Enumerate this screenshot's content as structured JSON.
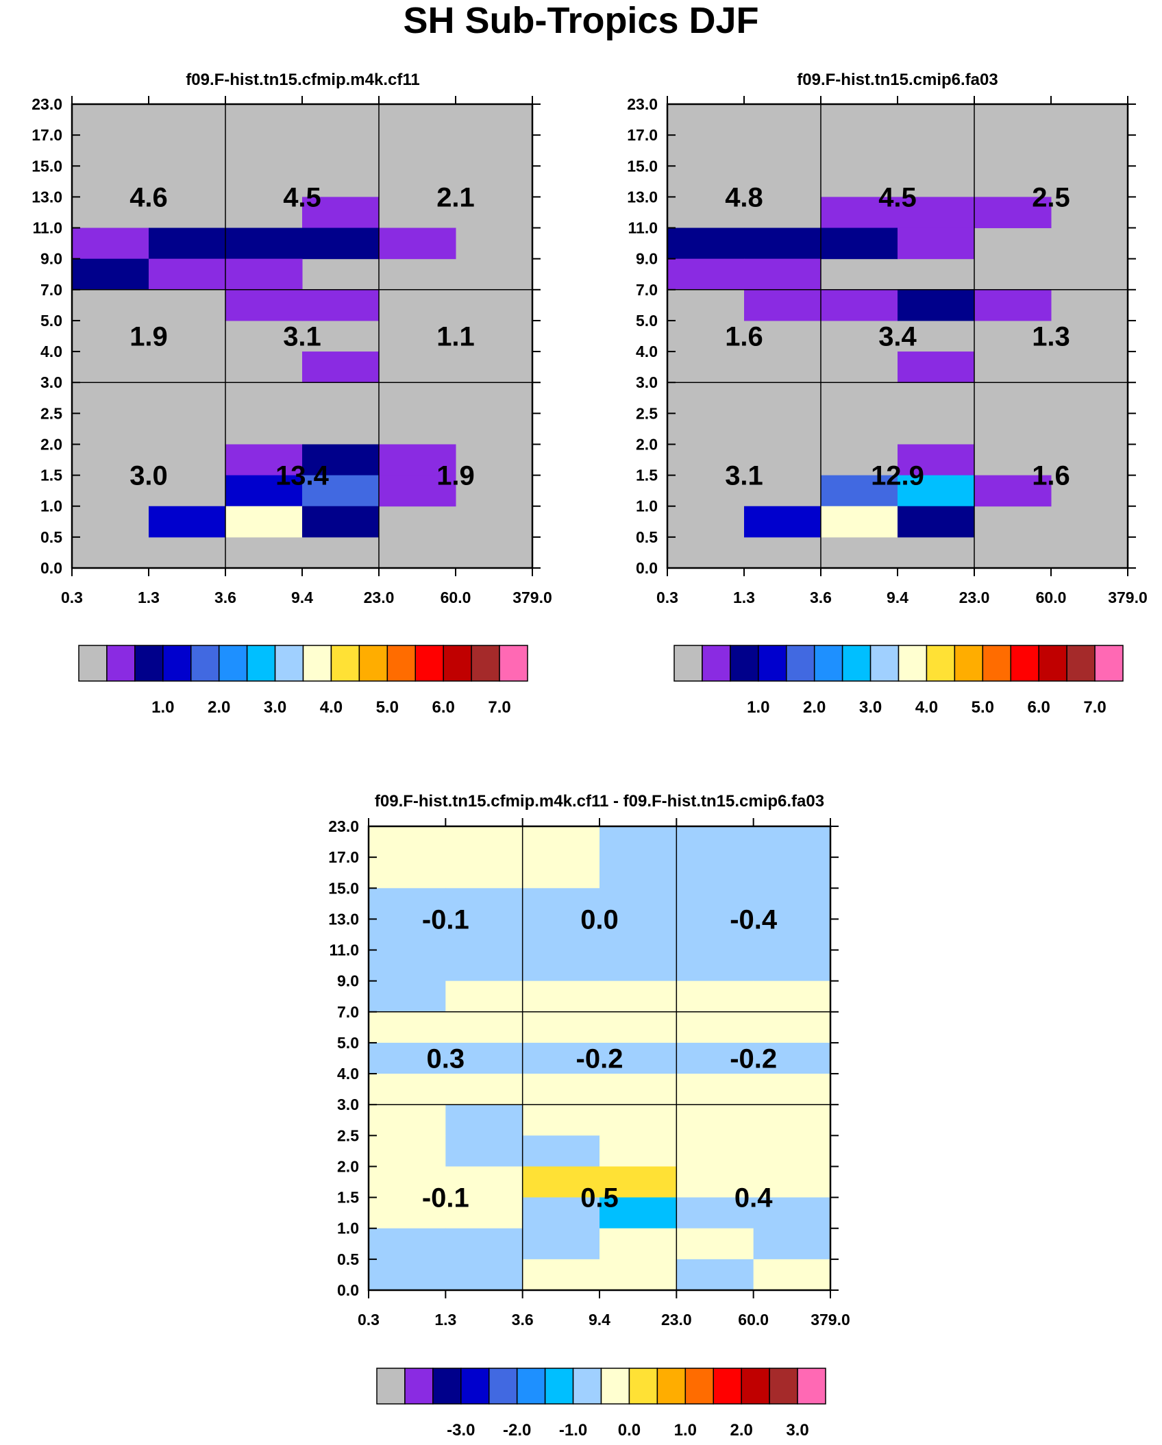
{
  "title": "SH Sub-Tropics DJF",
  "colors": {
    "palette": [
      "#bebebe",
      "#8a2be2",
      "#00008b",
      "#0000cd",
      "#4169e1",
      "#1e90ff",
      "#00bfff",
      "#a0d0ff",
      "#ffffd0",
      "#ffe135",
      "#ffad00",
      "#ff6c00",
      "#ff0000",
      "#c00000",
      "#a52a2a",
      "#ff69b4"
    ],
    "background": "#bebebe"
  },
  "chart_data": [
    {
      "type": "heatmap",
      "title": "f09.F-hist.tn15.cfmip.m4k.cf11",
      "x_tick_labels": [
        "0.3",
        "1.3",
        "3.6",
        "9.4",
        "23.0",
        "60.0",
        "379.0"
      ],
      "y_tick_labels": [
        "0.0",
        "0.5",
        "1.0",
        "1.5",
        "2.0",
        "2.5",
        "3.0",
        "4.0",
        "5.0",
        "7.0",
        "9.0",
        "11.0",
        "13.0",
        "15.0",
        "17.0",
        "23.0"
      ],
      "bin_colors_top_to_bottom": [
        [
          0,
          0,
          0,
          0,
          0,
          0
        ],
        [
          0,
          0,
          0,
          0,
          0,
          0
        ],
        [
          0,
          0,
          0,
          1,
          0,
          0
        ],
        [
          1,
          2,
          2,
          2,
          1,
          0
        ],
        [
          2,
          1,
          1,
          0,
          0,
          0
        ],
        [
          0,
          0,
          1,
          1,
          0,
          0
        ],
        [
          0,
          0,
          0,
          0,
          0,
          0
        ],
        [
          0,
          0,
          0,
          1,
          0,
          0
        ],
        [
          0,
          0,
          0,
          0,
          0,
          0
        ],
        [
          0,
          0,
          0,
          0,
          0,
          0
        ],
        [
          0,
          0,
          1,
          2,
          1,
          0
        ],
        [
          0,
          0,
          3,
          4,
          1,
          0
        ],
        [
          0,
          3,
          8,
          2,
          0,
          0
        ],
        [
          0,
          0,
          0,
          0,
          0,
          0
        ]
      ],
      "group_labels": [
        [
          "4.6",
          "4.5",
          "2.1"
        ],
        [
          "1.9",
          "3.1",
          "1.1"
        ],
        [
          "3.0",
          "13.4",
          "1.9"
        ]
      ],
      "colorbar_labels": [
        "1.0",
        "2.0",
        "3.0",
        "4.0",
        "5.0",
        "6.0",
        "7.0"
      ]
    },
    {
      "type": "heatmap",
      "title": "f09.F-hist.tn15.cmip6.fa03",
      "x_tick_labels": [
        "0.3",
        "1.3",
        "3.6",
        "9.4",
        "23.0",
        "60.0",
        "379.0"
      ],
      "y_tick_labels": [
        "0.0",
        "0.5",
        "1.0",
        "1.5",
        "2.0",
        "2.5",
        "3.0",
        "4.0",
        "5.0",
        "7.0",
        "9.0",
        "11.0",
        "13.0",
        "15.0",
        "17.0",
        "23.0"
      ],
      "bin_colors_top_to_bottom": [
        [
          0,
          0,
          0,
          0,
          0,
          0
        ],
        [
          0,
          0,
          0,
          0,
          0,
          0
        ],
        [
          0,
          0,
          1,
          1,
          1,
          0
        ],
        [
          2,
          2,
          2,
          1,
          0,
          0
        ],
        [
          1,
          1,
          0,
          0,
          0,
          0
        ],
        [
          0,
          1,
          1,
          2,
          1,
          0
        ],
        [
          0,
          0,
          0,
          0,
          0,
          0
        ],
        [
          0,
          0,
          0,
          1,
          0,
          0
        ],
        [
          0,
          0,
          0,
          0,
          0,
          0
        ],
        [
          0,
          0,
          0,
          0,
          0,
          0
        ],
        [
          0,
          0,
          0,
          1,
          0,
          0
        ],
        [
          0,
          0,
          4,
          6,
          1,
          0
        ],
        [
          0,
          3,
          8,
          2,
          0,
          0
        ],
        [
          0,
          0,
          0,
          0,
          0,
          0
        ]
      ],
      "group_labels": [
        [
          "4.8",
          "4.5",
          "2.5"
        ],
        [
          "1.6",
          "3.4",
          "1.3"
        ],
        [
          "3.1",
          "12.9",
          "1.6"
        ]
      ],
      "colorbar_labels": [
        "1.0",
        "2.0",
        "3.0",
        "4.0",
        "5.0",
        "6.0",
        "7.0"
      ]
    },
    {
      "type": "heatmap",
      "title": "f09.F-hist.tn15.cfmip.m4k.cf11 - f09.F-hist.tn15.cmip6.fa03",
      "x_tick_labels": [
        "0.3",
        "1.3",
        "3.6",
        "9.4",
        "23.0",
        "60.0",
        "379.0"
      ],
      "y_tick_labels": [
        "0.0",
        "0.5",
        "1.0",
        "1.5",
        "2.0",
        "2.5",
        "3.0",
        "4.0",
        "5.0",
        "7.0",
        "9.0",
        "11.0",
        "13.0",
        "15.0",
        "17.0",
        "23.0"
      ],
      "bin_colors_top_to_bottom": [
        [
          8,
          8,
          8,
          7,
          7,
          7
        ],
        [
          7,
          7,
          7,
          7,
          7,
          7
        ],
        [
          7,
          7,
          7,
          7,
          7,
          7
        ],
        [
          7,
          7,
          7,
          7,
          7,
          7
        ],
        [
          7,
          8,
          8,
          8,
          8,
          8
        ],
        [
          8,
          8,
          8,
          8,
          8,
          8
        ],
        [
          7,
          7,
          7,
          7,
          7,
          7
        ],
        [
          8,
          8,
          8,
          8,
          8,
          8
        ],
        [
          8,
          7,
          8,
          8,
          8,
          8
        ],
        [
          8,
          7,
          7,
          8,
          8,
          8
        ],
        [
          8,
          8,
          9,
          9,
          8,
          8
        ],
        [
          8,
          8,
          7,
          6,
          7,
          7
        ],
        [
          7,
          7,
          7,
          8,
          8,
          7
        ],
        [
          7,
          7,
          8,
          8,
          7,
          8
        ]
      ],
      "group_labels": [
        [
          "-0.1",
          "0.0",
          "-0.4"
        ],
        [
          "0.3",
          "-0.2",
          "-0.2"
        ],
        [
          "-0.1",
          "0.5",
          "0.4"
        ]
      ],
      "colorbar_labels": [
        "-3.0",
        "-2.0",
        "-1.0",
        "0.0",
        "1.0",
        "2.0",
        "3.0"
      ]
    }
  ]
}
